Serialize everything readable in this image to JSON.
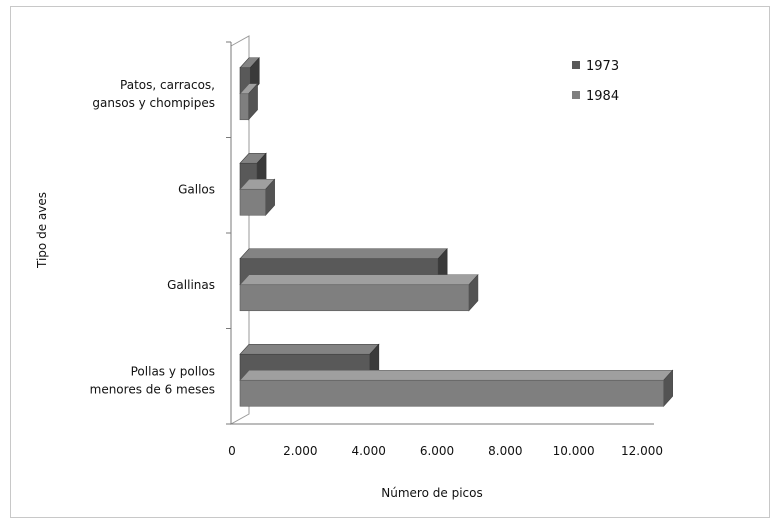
{
  "chart_data": {
    "type": "bar",
    "orientation": "horizontal",
    "three_d": true,
    "title": "",
    "xlabel": "Número de picos",
    "ylabel": "Tipo de aves",
    "xlim": [
      0,
      12000
    ],
    "xticks": [
      0,
      2000,
      4000,
      6000,
      8000,
      10000,
      12000
    ],
    "xtick_labels": [
      "0",
      "2.000",
      "4.000",
      "6.000",
      "8.000",
      "10.000",
      "12.000"
    ],
    "categories": [
      [
        "Patos, carracos,",
        "gansos y  chompipes"
      ],
      [
        "Gallos"
      ],
      [
        "Gallinas"
      ],
      [
        "Pollas y pollos",
        "menores de 6 meses"
      ]
    ],
    "series": [
      {
        "name": "1973",
        "color": "#595959",
        "values": [
          300,
          500,
          5800,
          3800
        ]
      },
      {
        "name": "1984",
        "color": "#7f7f7f",
        "values": [
          250,
          750,
          6700,
          12400
        ]
      }
    ],
    "legend_position": "top-right",
    "grid": false
  }
}
